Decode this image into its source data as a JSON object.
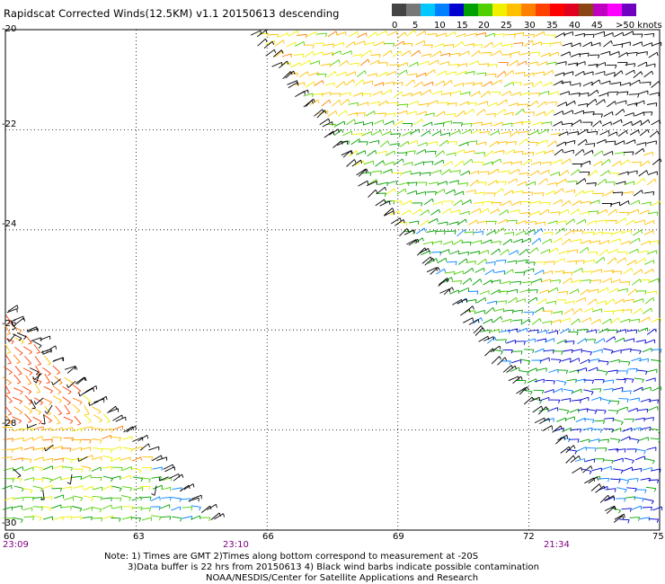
{
  "title": "Rapidscat Corrected Winds(12.5KM) v1.1 20150613 descending",
  "legend": {
    "swatches": [
      "#444444",
      "#777777",
      "#00c8ff",
      "#0080ff",
      "#0000d0",
      "#00a000",
      "#50d000",
      "#f0f000",
      "#ffc000",
      "#ff8000",
      "#ff4000",
      "#ff0000",
      "#e00020",
      "#8b4513",
      "#c000c0",
      "#ff00ff",
      "#7000c0"
    ],
    "ticks": [
      "0",
      "5",
      "10",
      "15",
      "20",
      "25",
      "30",
      "35",
      "40",
      "45",
      ">50 knots"
    ]
  },
  "map": {
    "lat_range": [
      -30,
      -20
    ],
    "lon_range": [
      60,
      75
    ],
    "lat_ticks": [
      "-20",
      "-22",
      "-24",
      "-26",
      "-28",
      "-30"
    ],
    "lon_ticks": [
      "60",
      "63",
      "66",
      "69",
      "72",
      "75"
    ],
    "grid": true
  },
  "times": [
    "23:09",
    "23:10",
    "21:34"
  ],
  "footer": {
    "line1": "Note: 1) Times are GMT 2)Times along bottom correspond to measurement at -20S",
    "line2": "3)Data buffer is 22 hrs from 20150613 4) Black wind barbs indicate possible contamination",
    "line3": "NOAA/NESDIS/Center for Satellite Applications and Research"
  }
}
